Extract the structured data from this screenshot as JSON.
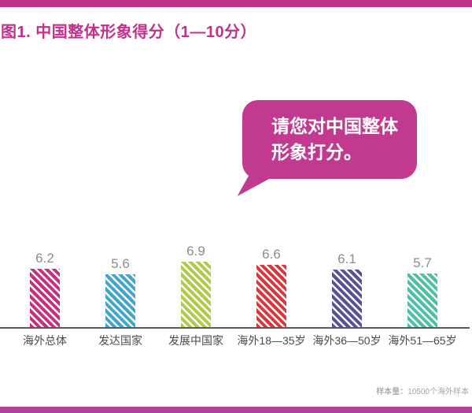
{
  "page": {
    "title": "图1. 中国整体形象得分（1—10分）",
    "note_label": "样本量：",
    "note_value": "10500个海外样本"
  },
  "bubble": {
    "line1": "请您对中国整体",
    "line2": "形象打分。",
    "color": "#C23A90"
  },
  "colors": {
    "top_bar": "#BD3287",
    "bottom_bar": "#AC4497",
    "title_text": "#C4308C",
    "value_label": "#8C8C8C",
    "category_label": "#4A4A4A",
    "axis": "#5A5A5A"
  },
  "chart_data": {
    "type": "bar",
    "title": "图1. 中国整体形象得分（1—10分）",
    "categories": [
      "海外总体",
      "发达国家",
      "发展中国家",
      "海外18—35岁",
      "海外36—50岁",
      "海外51—65岁"
    ],
    "values": [
      6.2,
      5.6,
      6.9,
      6.6,
      6.1,
      5.7
    ],
    "bar_colors": [
      "#C62F7F",
      "#41A5CE",
      "#AECB4B",
      "#D8383E",
      "#56519C",
      "#4CC0A5"
    ],
    "bar_style": "diagonal-stripes",
    "value_labels_shown": true,
    "grid": false,
    "legend": false,
    "xlabel": "",
    "ylabel": "",
    "ylim": [
      1,
      10
    ],
    "annotation": "请您对中国整体形象打分。",
    "footnote": "样本量：10500个海外样本"
  }
}
